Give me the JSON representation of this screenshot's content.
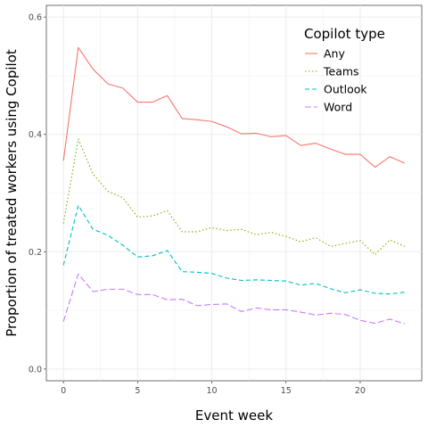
{
  "chart_data": {
    "type": "line",
    "xlabel": "Event week",
    "ylabel": "Proportion of treated workers using Copilot",
    "xlim": [
      -1.15,
      24.15
    ],
    "ylim": [
      -0.02,
      0.62
    ],
    "x_ticks": [
      0,
      5,
      10,
      15,
      20
    ],
    "y_ticks": [
      0.0,
      0.2,
      0.4,
      0.6
    ],
    "y_tick_labels": [
      "0.0",
      "0.2",
      "0.4",
      "0.6"
    ],
    "grid": true,
    "legend_position": "top-right",
    "legend_title": "Copilot type",
    "x": [
      0,
      1,
      2,
      3,
      4,
      5,
      6,
      7,
      8,
      9,
      10,
      11,
      12,
      13,
      14,
      15,
      16,
      17,
      18,
      19,
      20,
      21,
      22,
      23
    ],
    "series": [
      {
        "name": "Any",
        "color": "#F8766D",
        "dash": "solid",
        "values": [
          0.355,
          0.548,
          0.511,
          0.486,
          0.479,
          0.455,
          0.455,
          0.466,
          0.427,
          0.425,
          0.422,
          0.413,
          0.401,
          0.402,
          0.396,
          0.398,
          0.381,
          0.385,
          0.375,
          0.366,
          0.366,
          0.344,
          0.362,
          0.351
        ]
      },
      {
        "name": "Teams",
        "color": "#7CAE00",
        "dash": "dotted",
        "values": [
          0.248,
          0.392,
          0.332,
          0.303,
          0.292,
          0.259,
          0.261,
          0.27,
          0.234,
          0.234,
          0.241,
          0.236,
          0.238,
          0.229,
          0.233,
          0.226,
          0.217,
          0.224,
          0.209,
          0.214,
          0.219,
          0.195,
          0.22,
          0.209
        ]
      },
      {
        "name": "Outlook",
        "color": "#00BFC4",
        "dash": "dashed",
        "values": [
          0.177,
          0.279,
          0.238,
          0.228,
          0.211,
          0.191,
          0.193,
          0.202,
          0.166,
          0.165,
          0.163,
          0.155,
          0.151,
          0.152,
          0.151,
          0.15,
          0.143,
          0.146,
          0.137,
          0.13,
          0.135,
          0.129,
          0.128,
          0.131
        ]
      },
      {
        "name": "Word",
        "color": "#C77CFF",
        "dash": "longdash",
        "values": [
          0.081,
          0.162,
          0.132,
          0.136,
          0.136,
          0.127,
          0.127,
          0.118,
          0.119,
          0.108,
          0.11,
          0.111,
          0.098,
          0.104,
          0.101,
          0.101,
          0.097,
          0.092,
          0.095,
          0.093,
          0.083,
          0.078,
          0.085,
          0.077
        ]
      }
    ]
  }
}
